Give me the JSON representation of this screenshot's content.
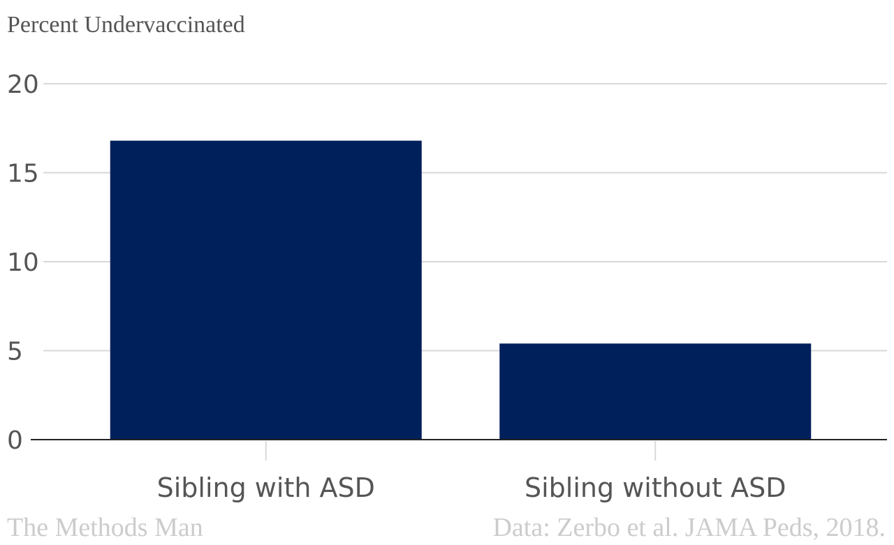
{
  "chart_data": {
    "type": "bar",
    "ylabel": "Percent Undervaccinated",
    "categories": [
      "Sibling with ASD",
      "Sibling without ASD"
    ],
    "values": [
      16.8,
      5.4
    ],
    "ylim": [
      0,
      20
    ],
    "yticks": [
      0,
      5,
      10,
      15,
      20
    ],
    "grid": true,
    "legend": "none",
    "bar_color": "#00205b"
  },
  "footer": {
    "credit": "The Methods Man",
    "source": "Data: Zerbo et al. JAMA Peds, 2018."
  }
}
